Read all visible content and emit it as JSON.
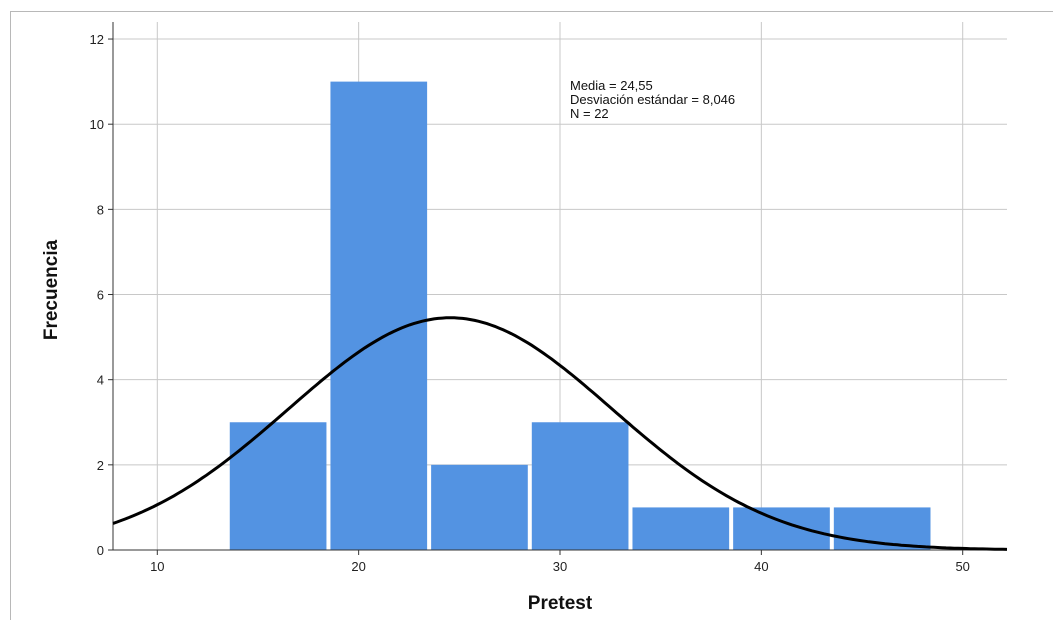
{
  "chart_data": {
    "type": "bar",
    "xlabel": "Pretest",
    "ylabel": "Frecuencia",
    "xlim": [
      7.8,
      52.2
    ],
    "ylim": [
      0,
      12.4
    ],
    "x_ticks": [
      10,
      20,
      30,
      40,
      50
    ],
    "x_tick_labels": [
      "10",
      "20",
      "30",
      "40",
      "50"
    ],
    "y_ticks": [
      0,
      2,
      4,
      6,
      8,
      10,
      12
    ],
    "y_tick_labels": [
      "0",
      "2",
      "4",
      "6",
      "8",
      "10",
      "12"
    ],
    "bins": [
      {
        "start": 13.5,
        "end": 18.5,
        "count": 3
      },
      {
        "start": 18.5,
        "end": 23.5,
        "count": 11
      },
      {
        "start": 23.5,
        "end": 28.5,
        "count": 2
      },
      {
        "start": 28.5,
        "end": 33.5,
        "count": 3
      },
      {
        "start": 33.5,
        "end": 38.5,
        "count": 1
      },
      {
        "start": 38.5,
        "end": 43.5,
        "count": 1
      },
      {
        "start": 43.5,
        "end": 48.5,
        "count": 1
      }
    ],
    "normal_curve": {
      "mean": 24.55,
      "sd": 8.046,
      "n": 22,
      "bin_width": 5
    },
    "stats_lines": [
      "Media = 24,55",
      "Desviación estándar = 8,046",
      "N = 22"
    ],
    "grid": true,
    "bar_color": "#5393e2",
    "curve_color": "#000000"
  }
}
